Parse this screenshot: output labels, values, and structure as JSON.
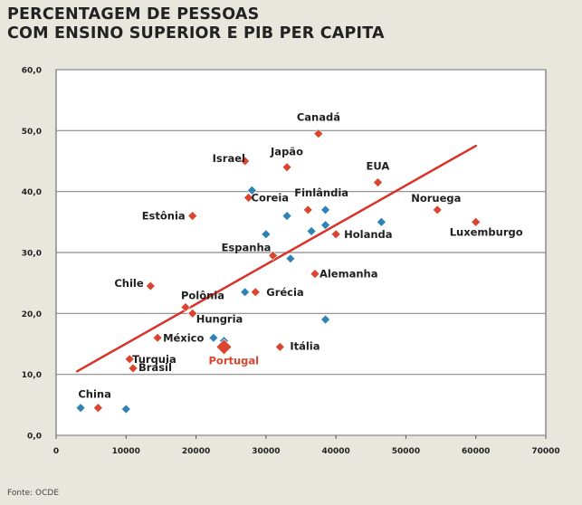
{
  "title_lines": [
    "PERCENTAGEM DE PESSOAS",
    "COM ENSINO SUPERIOR E PIB PER CAPITA"
  ],
  "source": "Fonte: OCDE",
  "colors": {
    "background": "#e9e6de",
    "plot_background": "#ffffff",
    "grid": "#8a8a8a",
    "blue": "#2f82b6",
    "red": "#d9452e",
    "trend": "#d9322a",
    "highlight_text": "#d9452e"
  },
  "chart_data": {
    "type": "scatter",
    "title": "PERCENTAGEM DE PESSOAS COM ENSINO SUPERIOR E PIB PER CAPITA",
    "xlabel": "",
    "ylabel": "",
    "xlim": [
      0,
      70000
    ],
    "ylim": [
      0,
      60
    ],
    "x_ticks": [
      0,
      10000,
      20000,
      30000,
      40000,
      50000,
      60000,
      70000
    ],
    "x_tick_labels": [
      "0",
      "10000",
      "20000",
      "30000",
      "40000",
      "50000",
      "60000",
      "70000"
    ],
    "y_ticks": [
      0,
      10,
      20,
      30,
      40,
      50,
      60
    ],
    "y_tick_labels": [
      "0,0",
      "10,0",
      "20,0",
      "30,0",
      "40,0",
      "50,0",
      "60,0"
    ],
    "grid": true,
    "trend_line": {
      "x": [
        3000,
        60000
      ],
      "y": [
        10.5,
        47.5
      ]
    },
    "labeled_points": [
      {
        "label": "Canadá",
        "x": 37500,
        "y": 49.5
      },
      {
        "label": "Israel",
        "x": 27000,
        "y": 45
      },
      {
        "label": "Japão",
        "x": 33000,
        "y": 44
      },
      {
        "label": "EUA",
        "x": 46000,
        "y": 41.5
      },
      {
        "label": "Finlândia",
        "x": 36000,
        "y": 37
      },
      {
        "label": "Coreia",
        "x": 27500,
        "y": 39
      },
      {
        "label": "Noruega",
        "x": 54500,
        "y": 37
      },
      {
        "label": "Estônia",
        "x": 19500,
        "y": 36
      },
      {
        "label": "Luxemburgo",
        "x": 60000,
        "y": 35
      },
      {
        "label": "Holanda",
        "x": 40000,
        "y": 33
      },
      {
        "label": "Espanha",
        "x": 31000,
        "y": 29.5
      },
      {
        "label": "Alemanha",
        "x": 37000,
        "y": 26.5
      },
      {
        "label": "Chile",
        "x": 13500,
        "y": 24.5
      },
      {
        "label": "Grécia",
        "x": 28500,
        "y": 23.5
      },
      {
        "label": "Polônia",
        "x": 18500,
        "y": 21
      },
      {
        "label": "Hungria",
        "x": 19500,
        "y": 20
      },
      {
        "label": "México",
        "x": 14500,
        "y": 16
      },
      {
        "label": "Turquia",
        "x": 10500,
        "y": 12.5
      },
      {
        "label": "Itália",
        "x": 32000,
        "y": 14.5
      },
      {
        "label": "Portugal",
        "x": 24000,
        "y": 14.5,
        "highlight": true
      },
      {
        "label": "Brasil",
        "x": 11000,
        "y": 11
      },
      {
        "label": "China",
        "x": 6000,
        "y": 4.5
      }
    ],
    "unlabeled_points": [
      {
        "x": 3500,
        "y": 4.5
      },
      {
        "x": 10000,
        "y": 4.3
      },
      {
        "x": 28000,
        "y": 40.2
      },
      {
        "x": 33000,
        "y": 36
      },
      {
        "x": 38500,
        "y": 37
      },
      {
        "x": 38500,
        "y": 34.5
      },
      {
        "x": 36500,
        "y": 33.5
      },
      {
        "x": 46500,
        "y": 35
      },
      {
        "x": 30000,
        "y": 33
      },
      {
        "x": 33500,
        "y": 29
      },
      {
        "x": 27000,
        "y": 23.5
      },
      {
        "x": 38500,
        "y": 19
      },
      {
        "x": 22500,
        "y": 16
      },
      {
        "x": 24000,
        "y": 15.5
      }
    ]
  }
}
